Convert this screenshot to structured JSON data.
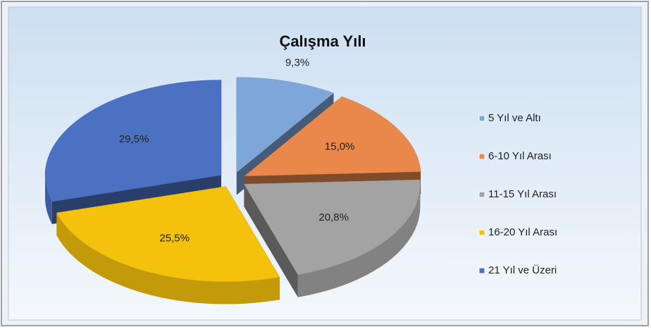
{
  "chart_data": {
    "type": "pie",
    "title": "Çalışma Yılı",
    "categories": [
      "5 Yıl ve Altı",
      "6-10 Yıl Arası",
      "11-15 Yıl Arası",
      "16-20 Yıl Arası",
      "21 Yıl ve Üzeri"
    ],
    "values": [
      9.3,
      15.0,
      20.8,
      25.5,
      29.5
    ],
    "value_labels": [
      "9,3%",
      "15,0%",
      "20,8%",
      "25,5%",
      "29,5%"
    ],
    "colors": [
      "#7ea6d8",
      "#e9884a",
      "#a3a3a3",
      "#f4c20d",
      "#4c70c2"
    ],
    "legend": "right"
  }
}
